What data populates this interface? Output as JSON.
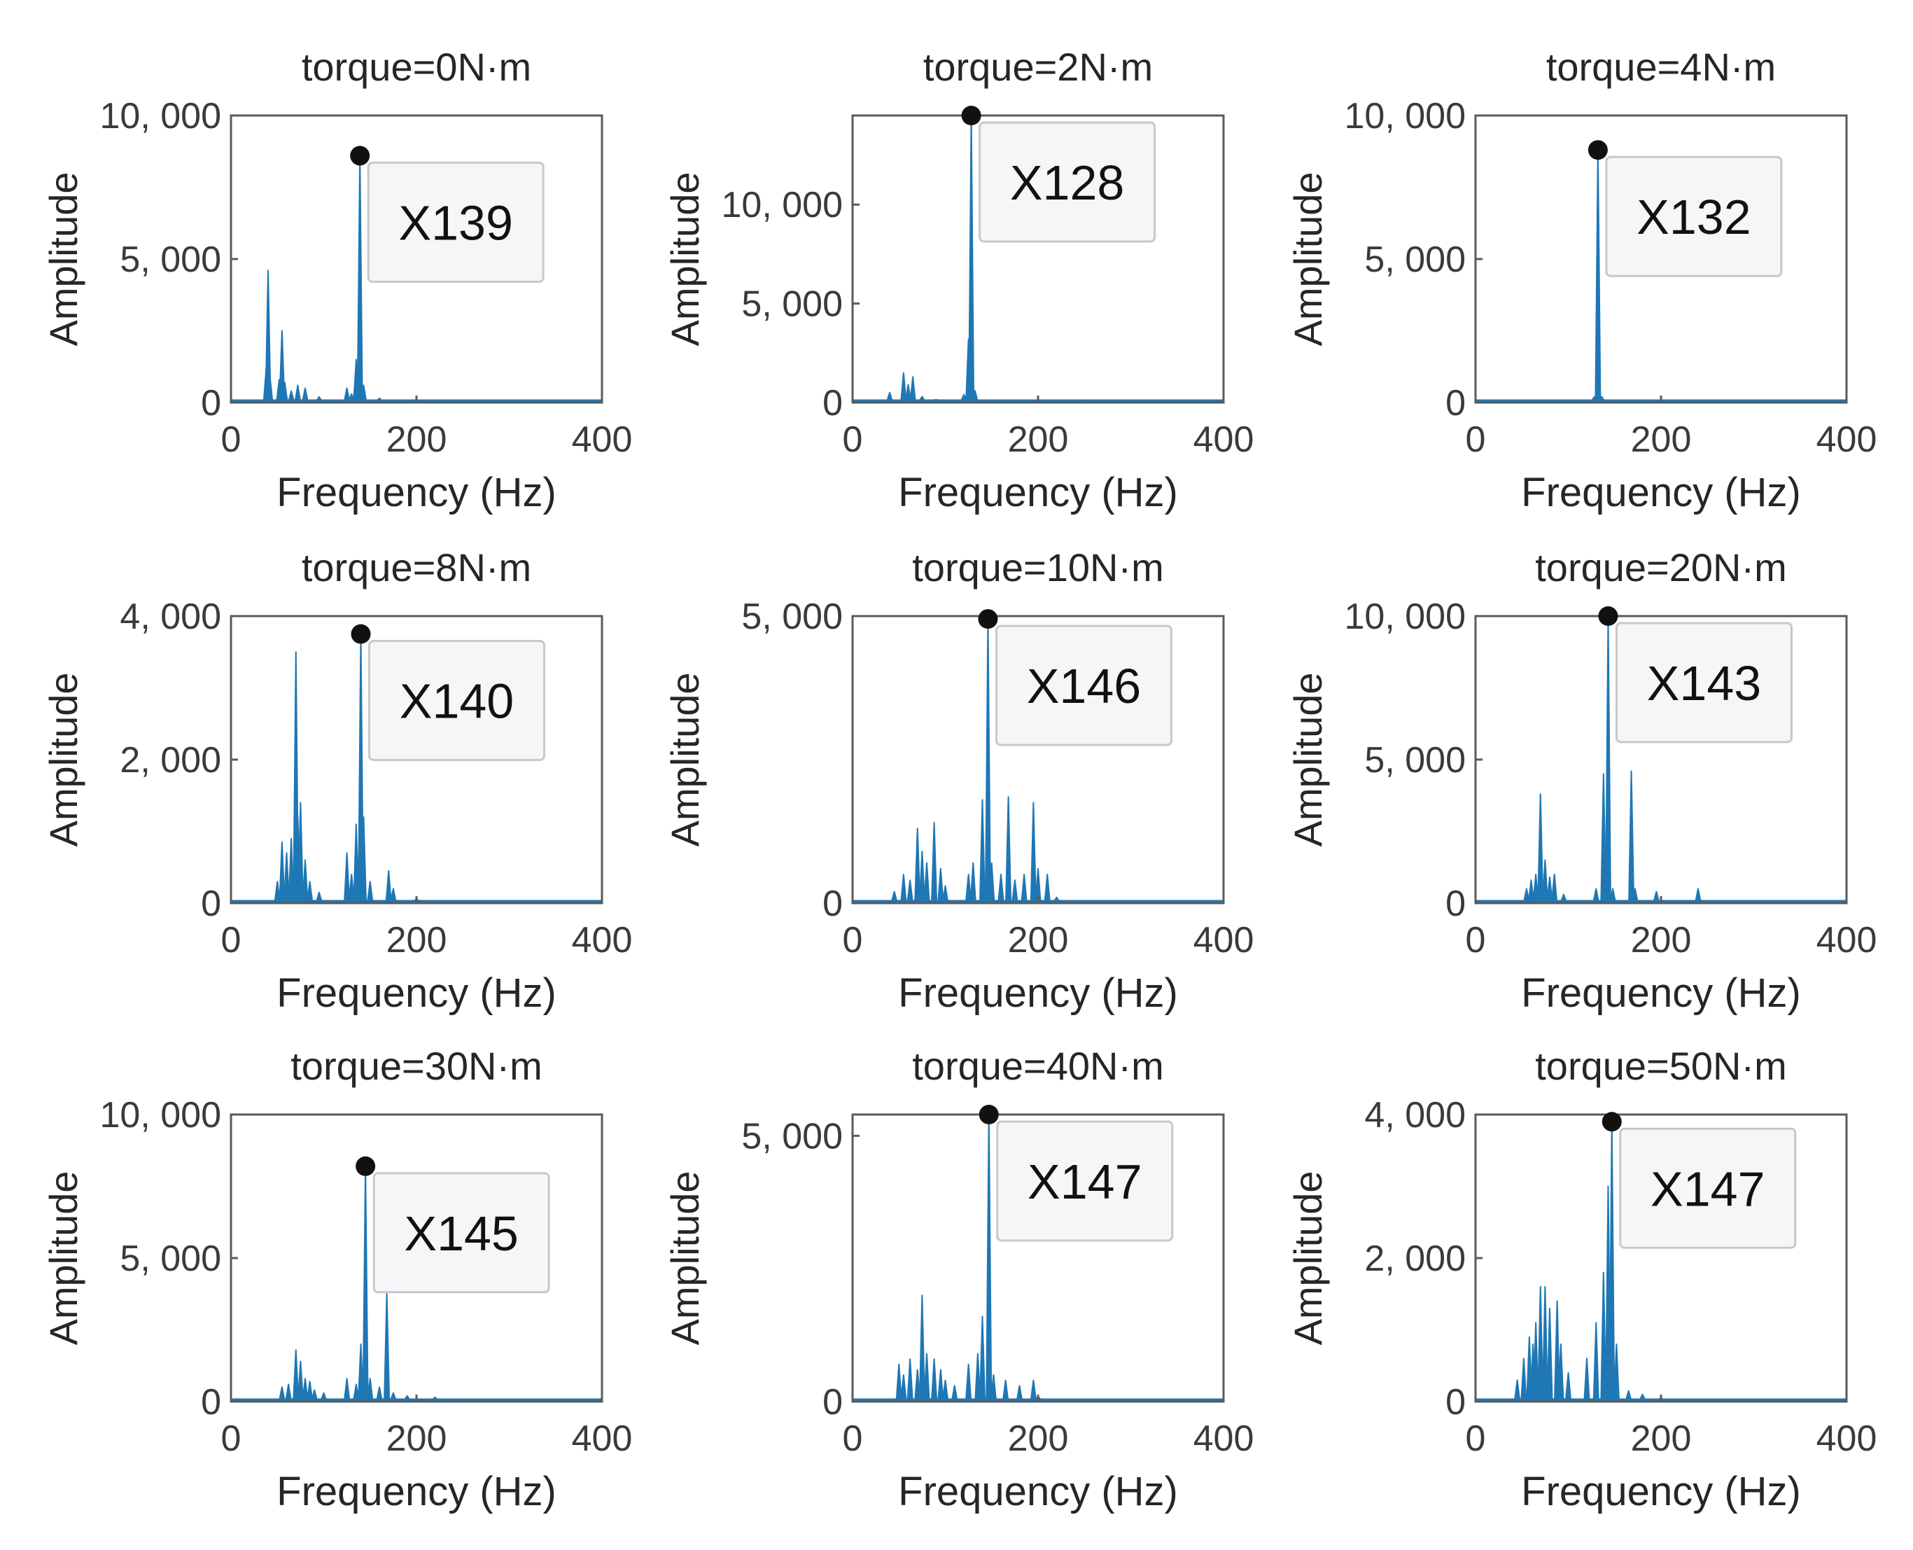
{
  "colors": {
    "series": "#1f77b4",
    "axes": "#5a5a5a",
    "marker": "#111111",
    "tooltip_bg": "#f6f6f8",
    "tooltip_border": "#c8c8c8"
  },
  "common": {
    "xlabel": "Frequency (Hz)",
    "ylabel": "Amplitude",
    "xlim": [
      0,
      400
    ],
    "xticks": [
      0,
      200,
      400
    ],
    "xtick_labels": [
      "0",
      "200",
      "400"
    ]
  },
  "chart_data": [
    {
      "type": "line",
      "title": "torque=0N·m",
      "ylim": [
        0,
        10000
      ],
      "yticks": [
        0,
        5000,
        10000
      ],
      "ytick_labels": [
        "0",
        "5, 000",
        "10, 000"
      ],
      "peak": {
        "x": 139,
        "y": 8600
      },
      "tooltip": "X139",
      "spikes": [
        [
          38,
          1200
        ],
        [
          40,
          4600
        ],
        [
          42,
          900
        ],
        [
          52,
          800
        ],
        [
          55,
          2500
        ],
        [
          58,
          700
        ],
        [
          65,
          400
        ],
        [
          72,
          600
        ],
        [
          80,
          500
        ],
        [
          95,
          200
        ],
        [
          125,
          500
        ],
        [
          130,
          300
        ],
        [
          135,
          1500
        ],
        [
          139,
          8600
        ],
        [
          143,
          600
        ],
        [
          160,
          150
        ],
        [
          200,
          80
        ]
      ]
    },
    {
      "type": "line",
      "title": "torque=2N·m",
      "ylim": [
        0,
        14500
      ],
      "yticks": [
        0,
        5000,
        10000
      ],
      "ytick_labels": [
        "0",
        "5, 000",
        "10, 000"
      ],
      "peak": {
        "x": 128,
        "y": 14500
      },
      "tooltip": "X128",
      "spikes": [
        [
          40,
          500
        ],
        [
          55,
          1500
        ],
        [
          60,
          900
        ],
        [
          65,
          1300
        ],
        [
          75,
          300
        ],
        [
          90,
          150
        ],
        [
          120,
          400
        ],
        [
          125,
          3200
        ],
        [
          128,
          14500
        ],
        [
          132,
          600
        ],
        [
          160,
          100
        ],
        [
          250,
          60
        ]
      ]
    },
    {
      "type": "line",
      "title": "torque=4N·m",
      "ylim": [
        0,
        10000
      ],
      "yticks": [
        0,
        5000,
        10000
      ],
      "ytick_labels": [
        "0",
        "5, 000",
        "10, 000"
      ],
      "peak": {
        "x": 132,
        "y": 8800
      },
      "tooltip": "X132",
      "spikes": [
        [
          60,
          60
        ],
        [
          128,
          200
        ],
        [
          132,
          8800
        ],
        [
          136,
          200
        ],
        [
          200,
          40
        ]
      ]
    },
    {
      "type": "line",
      "title": "torque=8N·m",
      "ylim": [
        0,
        4000
      ],
      "yticks": [
        0,
        2000,
        4000
      ],
      "ytick_labels": [
        "0",
        "2, 000",
        "4, 000"
      ],
      "peak": {
        "x": 140,
        "y": 3750
      },
      "tooltip": "X140",
      "spikes": [
        [
          50,
          300
        ],
        [
          55,
          850
        ],
        [
          60,
          700
        ],
        [
          65,
          900
        ],
        [
          70,
          3500
        ],
        [
          72,
          1200
        ],
        [
          75,
          1400
        ],
        [
          80,
          600
        ],
        [
          85,
          300
        ],
        [
          95,
          150
        ],
        [
          125,
          700
        ],
        [
          130,
          400
        ],
        [
          135,
          1100
        ],
        [
          140,
          3750
        ],
        [
          143,
          1200
        ],
        [
          150,
          300
        ],
        [
          170,
          450
        ],
        [
          175,
          200
        ],
        [
          200,
          60
        ]
      ]
    },
    {
      "type": "line",
      "title": "torque=10N·m",
      "ylim": [
        0,
        5000
      ],
      "yticks": [
        0,
        5000
      ],
      "ytick_labels": [
        "0",
        "5, 000"
      ],
      "peak": {
        "x": 146,
        "y": 4950
      },
      "tooltip": "X146",
      "spikes": [
        [
          45,
          200
        ],
        [
          55,
          500
        ],
        [
          62,
          400
        ],
        [
          70,
          1300
        ],
        [
          75,
          900
        ],
        [
          80,
          700
        ],
        [
          88,
          1400
        ],
        [
          95,
          600
        ],
        [
          100,
          300
        ],
        [
          125,
          500
        ],
        [
          130,
          700
        ],
        [
          140,
          1800
        ],
        [
          146,
          4950
        ],
        [
          150,
          700
        ],
        [
          160,
          500
        ],
        [
          168,
          1850
        ],
        [
          175,
          400
        ],
        [
          185,
          500
        ],
        [
          195,
          1750
        ],
        [
          200,
          600
        ],
        [
          210,
          500
        ],
        [
          220,
          100
        ]
      ]
    },
    {
      "type": "line",
      "title": "torque=20N·m",
      "ylim": [
        0,
        10000
      ],
      "yticks": [
        0,
        5000,
        10000
      ],
      "ytick_labels": [
        "0",
        "5, 000",
        "10, 000"
      ],
      "peak": {
        "x": 143,
        "y": 10000
      },
      "tooltip": "X143",
      "spikes": [
        [
          55,
          500
        ],
        [
          60,
          800
        ],
        [
          65,
          1000
        ],
        [
          70,
          3800
        ],
        [
          75,
          1500
        ],
        [
          80,
          900
        ],
        [
          85,
          1000
        ],
        [
          95,
          300
        ],
        [
          130,
          500
        ],
        [
          138,
          4500
        ],
        [
          143,
          10000
        ],
        [
          148,
          500
        ],
        [
          168,
          4600
        ],
        [
          172,
          500
        ],
        [
          195,
          400
        ],
        [
          240,
          500
        ],
        [
          300,
          50
        ]
      ]
    },
    {
      "type": "line",
      "title": "torque=30N·m",
      "ylim": [
        0,
        10000
      ],
      "yticks": [
        0,
        5000,
        10000
      ],
      "ytick_labels": [
        "0",
        "5, 000",
        "10, 000"
      ],
      "peak": {
        "x": 145,
        "y": 8200
      },
      "tooltip": "X145",
      "spikes": [
        [
          55,
          500
        ],
        [
          62,
          600
        ],
        [
          70,
          1800
        ],
        [
          75,
          1400
        ],
        [
          80,
          800
        ],
        [
          85,
          700
        ],
        [
          90,
          400
        ],
        [
          100,
          300
        ],
        [
          125,
          800
        ],
        [
          135,
          600
        ],
        [
          140,
          2000
        ],
        [
          145,
          8200
        ],
        [
          150,
          800
        ],
        [
          160,
          500
        ],
        [
          168,
          3800
        ],
        [
          175,
          300
        ],
        [
          190,
          200
        ],
        [
          220,
          150
        ],
        [
          250,
          50
        ]
      ]
    },
    {
      "type": "line",
      "title": "torque=40N·m",
      "ylim": [
        0,
        5400
      ],
      "yticks": [
        0,
        5000
      ],
      "ytick_labels": [
        "0",
        "5, 000"
      ],
      "peak": {
        "x": 147,
        "y": 5400
      },
      "tooltip": "X147",
      "spikes": [
        [
          50,
          700
        ],
        [
          55,
          500
        ],
        [
          62,
          800
        ],
        [
          70,
          600
        ],
        [
          75,
          2000
        ],
        [
          80,
          900
        ],
        [
          88,
          800
        ],
        [
          95,
          600
        ],
        [
          100,
          400
        ],
        [
          110,
          300
        ],
        [
          125,
          700
        ],
        [
          135,
          900
        ],
        [
          140,
          1600
        ],
        [
          147,
          5400
        ],
        [
          152,
          500
        ],
        [
          165,
          400
        ],
        [
          180,
          300
        ],
        [
          195,
          400
        ],
        [
          200,
          100
        ]
      ]
    },
    {
      "type": "line",
      "title": "torque=50N·m",
      "ylim": [
        0,
        4000
      ],
      "yticks": [
        0,
        2000,
        4000
      ],
      "ytick_labels": [
        "0",
        "2, 000",
        "4, 000"
      ],
      "peak": {
        "x": 147,
        "y": 3900
      },
      "tooltip": "X147",
      "spikes": [
        [
          45,
          300
        ],
        [
          52,
          600
        ],
        [
          58,
          900
        ],
        [
          62,
          800
        ],
        [
          65,
          1100
        ],
        [
          70,
          1600
        ],
        [
          75,
          1600
        ],
        [
          80,
          1300
        ],
        [
          88,
          1400
        ],
        [
          92,
          800
        ],
        [
          100,
          400
        ],
        [
          120,
          600
        ],
        [
          130,
          1100
        ],
        [
          138,
          1800
        ],
        [
          143,
          3000
        ],
        [
          147,
          3900
        ],
        [
          152,
          800
        ],
        [
          165,
          150
        ],
        [
          180,
          100
        ],
        [
          200,
          50
        ]
      ]
    }
  ]
}
